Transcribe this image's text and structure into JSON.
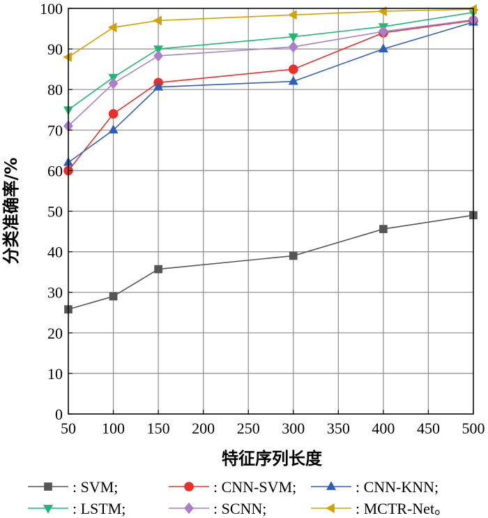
{
  "chart_data": {
    "type": "line",
    "xlabel": "特征序列长度",
    "ylabel": "分类准确率/%",
    "xlim": [
      50,
      500
    ],
    "ylim": [
      0,
      100
    ],
    "xticks": [
      50,
      100,
      150,
      200,
      250,
      300,
      350,
      400,
      450,
      500
    ],
    "yticks": [
      0,
      10,
      20,
      30,
      40,
      50,
      60,
      70,
      80,
      90,
      100
    ],
    "grid": true,
    "legend_position": "bottom",
    "x": [
      50,
      100,
      150,
      300,
      400,
      500
    ],
    "series": [
      {
        "name": ": SVM;",
        "marker": "square",
        "color": "#555555",
        "values": [
          25.8,
          29.0,
          35.7,
          39.0,
          45.6,
          49.0
        ]
      },
      {
        "name": ": CNN-SVM;",
        "marker": "circle",
        "color": "#e8302a",
        "values": [
          60.0,
          74.0,
          81.7,
          85.0,
          94.0,
          97.0
        ]
      },
      {
        "name": ": CNN-KNN;",
        "marker": "triangle-up",
        "color": "#2f5fb4",
        "values": [
          62.0,
          70.0,
          80.6,
          82.0,
          90.0,
          96.6
        ]
      },
      {
        "name": ": LSTM;",
        "marker": "triangle-down",
        "color": "#22b573",
        "values": [
          75.0,
          83.0,
          90.0,
          93.0,
          95.5,
          99.0
        ]
      },
      {
        "name": ": SCNN;",
        "marker": "diamond",
        "color": "#a97fc8",
        "values": [
          71.0,
          81.5,
          88.3,
          90.5,
          94.3,
          97.2
        ]
      },
      {
        "name": ": MCTR-Net。",
        "marker": "triangle-left",
        "color": "#d4a200",
        "values": [
          88.0,
          95.3,
          97.0,
          98.4,
          99.3,
          99.8
        ]
      }
    ]
  }
}
